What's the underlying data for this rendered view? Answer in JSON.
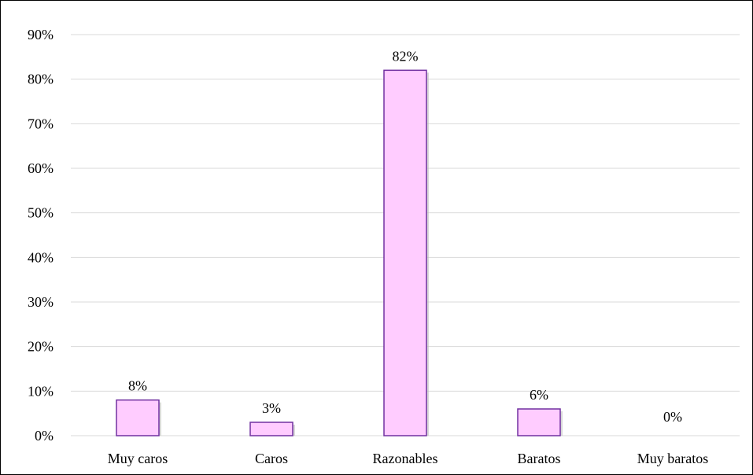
{
  "chart_data": {
    "type": "bar",
    "categories": [
      "Muy caros",
      "Caros",
      "Razonables",
      "Baratos",
      "Muy baratos"
    ],
    "values": [
      8,
      3,
      82,
      6,
      0
    ],
    "data_labels": [
      "8%",
      "3%",
      "82%",
      "6%",
      "0%"
    ],
    "ylim": [
      0,
      90
    ],
    "yticks": [
      0,
      10,
      20,
      30,
      40,
      50,
      60,
      70,
      80,
      90
    ],
    "ytick_labels": [
      "0%",
      "10%",
      "20%",
      "30%",
      "40%",
      "50%",
      "60%",
      "70%",
      "80%",
      "90%"
    ],
    "grid": true,
    "legend": "none",
    "colors": {
      "bar_fill": "#FFCCFF",
      "bar_stroke": "#7030A0",
      "grid": "#D9D9D9"
    }
  }
}
